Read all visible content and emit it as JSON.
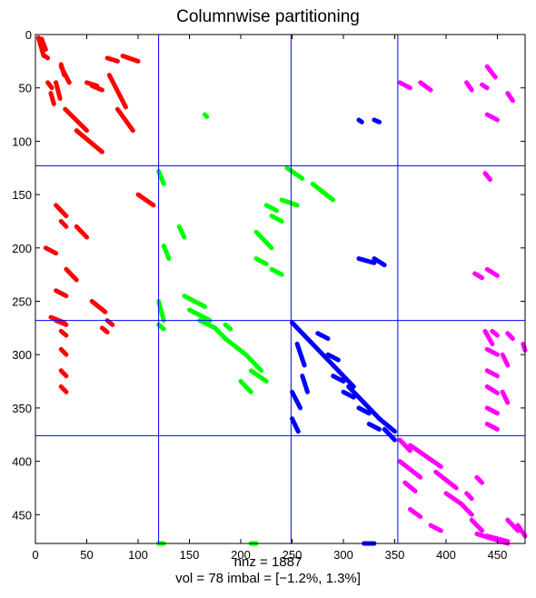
{
  "chart_data": {
    "type": "scatter",
    "title": "Columnwise partitioning",
    "xlabel_lines": [
      "nnz = 1887",
      "vol = 78  imbal = [−1.2%, 1.3%]"
    ],
    "xlim": [
      0,
      477
    ],
    "ylim": [
      0,
      477
    ],
    "y_reversed": true,
    "xticks": [
      0,
      50,
      100,
      150,
      200,
      250,
      300,
      350,
      400,
      450
    ],
    "yticks": [
      0,
      50,
      100,
      150,
      200,
      250,
      300,
      350,
      400,
      450
    ],
    "partition_lines": {
      "vertical": [
        120,
        249,
        353
      ],
      "horizontal": [
        123,
        268,
        376
      ],
      "color": "#0000ff"
    },
    "parts": [
      {
        "color": "#ff0000",
        "segments": [
          [
            3,
            3,
            8,
            20
          ],
          [
            6,
            4,
            10,
            14
          ],
          [
            9,
            20,
            12,
            22
          ],
          [
            25,
            30,
            33,
            45
          ],
          [
            25,
            28,
            28,
            38
          ],
          [
            12,
            45,
            16,
            50
          ],
          [
            20,
            45,
            24,
            60
          ],
          [
            15,
            55,
            18,
            65
          ],
          [
            29,
            70,
            50,
            90
          ],
          [
            40,
            90,
            65,
            110
          ],
          [
            70,
            22,
            80,
            25
          ],
          [
            50,
            45,
            60,
            48
          ],
          [
            55,
            48,
            65,
            52
          ],
          [
            85,
            20,
            100,
            25
          ],
          [
            72,
            38,
            88,
            68
          ],
          [
            80,
            70,
            95,
            90
          ],
          [
            100,
            150,
            115,
            160
          ],
          [
            20,
            160,
            30,
            170
          ],
          [
            25,
            175,
            30,
            180
          ],
          [
            40,
            180,
            50,
            190
          ],
          [
            10,
            200,
            20,
            205
          ],
          [
            30,
            220,
            40,
            230
          ],
          [
            20,
            240,
            30,
            245
          ],
          [
            55,
            250,
            68,
            260
          ],
          [
            15,
            265,
            28,
            270
          ],
          [
            20,
            268,
            30,
            272
          ],
          [
            25,
            278,
            30,
            282
          ],
          [
            25,
            295,
            30,
            300
          ],
          [
            25,
            315,
            30,
            320
          ],
          [
            25,
            330,
            30,
            335
          ],
          [
            65,
            275,
            70,
            279
          ],
          [
            70,
            268,
            75,
            272
          ]
        ]
      },
      {
        "color": "#00ff00",
        "segments": [
          [
            165,
            75,
            167,
            77
          ],
          [
            120,
            128,
            125,
            140
          ],
          [
            140,
            180,
            145,
            190
          ],
          [
            125,
            198,
            130,
            210
          ],
          [
            145,
            245,
            165,
            255
          ],
          [
            150,
            258,
            170,
            268
          ],
          [
            160,
            268,
            175,
            275
          ],
          [
            175,
            275,
            185,
            285
          ],
          [
            185,
            285,
            205,
            300
          ],
          [
            205,
            300,
            220,
            315
          ],
          [
            210,
            315,
            225,
            325
          ],
          [
            200,
            325,
            210,
            335
          ],
          [
            245,
            125,
            260,
            135
          ],
          [
            270,
            140,
            290,
            155
          ],
          [
            240,
            155,
            255,
            160
          ],
          [
            225,
            160,
            235,
            165
          ],
          [
            230,
            170,
            240,
            175
          ],
          [
            215,
            185,
            230,
            200
          ],
          [
            215,
            210,
            225,
            215
          ],
          [
            230,
            220,
            240,
            225
          ],
          [
            120,
            272,
            125,
            276
          ],
          [
            185,
            272,
            190,
            276
          ],
          [
            120,
            250,
            125,
            268
          ],
          [
            210,
            477,
            215,
            477
          ],
          [
            120,
            477,
            125,
            477
          ]
        ]
      },
      {
        "color": "#0000ff",
        "segments": [
          [
            315,
            80,
            318,
            82
          ],
          [
            330,
            80,
            335,
            82
          ],
          [
            315,
            210,
            330,
            214
          ],
          [
            330,
            210,
            340,
            216
          ],
          [
            250,
            270,
            270,
            290
          ],
          [
            270,
            290,
            290,
            310
          ],
          [
            290,
            310,
            310,
            330
          ],
          [
            305,
            330,
            320,
            345
          ],
          [
            320,
            345,
            335,
            360
          ],
          [
            335,
            360,
            350,
            372
          ],
          [
            255,
            290,
            262,
            310
          ],
          [
            260,
            320,
            265,
            335
          ],
          [
            250,
            335,
            258,
            350
          ],
          [
            250,
            360,
            256,
            372
          ],
          [
            275,
            280,
            285,
            285
          ],
          [
            285,
            300,
            295,
            305
          ],
          [
            290,
            320,
            300,
            325
          ],
          [
            300,
            335,
            310,
            340
          ],
          [
            315,
            350,
            325,
            355
          ],
          [
            325,
            365,
            335,
            370
          ],
          [
            345,
            375,
            350,
            380
          ],
          [
            340,
            370,
            345,
            375
          ],
          [
            320,
            477,
            330,
            477
          ]
        ]
      },
      {
        "color": "#ff00ff",
        "segments": [
          [
            355,
            45,
            365,
            50
          ],
          [
            375,
            45,
            385,
            52
          ],
          [
            420,
            45,
            425,
            52
          ],
          [
            435,
            47,
            440,
            50
          ],
          [
            440,
            30,
            448,
            40
          ],
          [
            440,
            75,
            450,
            80
          ],
          [
            460,
            55,
            465,
            62
          ],
          [
            438,
            130,
            443,
            136
          ],
          [
            440,
            220,
            450,
            226
          ],
          [
            428,
            224,
            435,
            228
          ],
          [
            438,
            278,
            445,
            290
          ],
          [
            445,
            278,
            450,
            282
          ],
          [
            460,
            280,
            465,
            285
          ],
          [
            475,
            290,
            477,
            296
          ],
          [
            440,
            295,
            450,
            300
          ],
          [
            440,
            315,
            450,
            320
          ],
          [
            440,
            330,
            450,
            336
          ],
          [
            440,
            350,
            450,
            355
          ],
          [
            440,
            365,
            450,
            370
          ],
          [
            455,
            300,
            460,
            310
          ],
          [
            455,
            335,
            460,
            345
          ],
          [
            355,
            380,
            365,
            390
          ],
          [
            355,
            400,
            375,
            415
          ],
          [
            365,
            385,
            380,
            395
          ],
          [
            380,
            395,
            395,
            405
          ],
          [
            390,
            410,
            410,
            425
          ],
          [
            400,
            430,
            415,
            440
          ],
          [
            415,
            440,
            425,
            450
          ],
          [
            425,
            455,
            435,
            465
          ],
          [
            430,
            468,
            460,
            477
          ],
          [
            440,
            470,
            460,
            475
          ],
          [
            460,
            455,
            470,
            465
          ],
          [
            470,
            460,
            477,
            470
          ],
          [
            360,
            420,
            370,
            428
          ],
          [
            365,
            445,
            375,
            452
          ],
          [
            385,
            460,
            395,
            465
          ],
          [
            420,
            430,
            425,
            435
          ],
          [
            430,
            415,
            435,
            420
          ]
        ]
      }
    ]
  }
}
